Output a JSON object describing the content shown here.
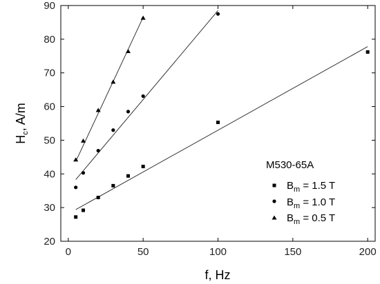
{
  "chart_data": {
    "type": "scatter",
    "xlabel": "f, Hz",
    "ylabel_main": "H",
    "ylabel_sub": "c",
    "ylabel_rest": ", A/m",
    "xlim": [
      -5,
      205
    ],
    "ylim": [
      20,
      90
    ],
    "xticks": [
      0,
      50,
      100,
      150,
      200
    ],
    "yticks": [
      20,
      30,
      40,
      50,
      60,
      70,
      80,
      90
    ],
    "grid": false,
    "legend_position": "right",
    "legend_title": "M530-65A",
    "series": [
      {
        "name": "B_m = 1.5 T",
        "label_main": "B",
        "label_sub": "m",
        "label_rest": " = 1.5 T",
        "marker": "square",
        "x": [
          5,
          10,
          20,
          30,
          40,
          50,
          100,
          200
        ],
        "y": [
          27.2,
          29.2,
          33.0,
          36.5,
          39.4,
          42.2,
          55.3,
          76.2
        ],
        "fit": [
          [
            5,
            29.4
          ],
          [
            200,
            77.8
          ]
        ]
      },
      {
        "name": "B_m = 1.0 T",
        "label_main": "B",
        "label_sub": "m",
        "label_rest": " = 1.0 T",
        "marker": "circle",
        "x": [
          5,
          10,
          20,
          30,
          40,
          50,
          100
        ],
        "y": [
          36.0,
          40.3,
          46.9,
          53.0,
          58.5,
          63.1,
          87.5
        ],
        "fit": [
          [
            5,
            38.3
          ],
          [
            100,
            88.5
          ]
        ]
      },
      {
        "name": "B_m = 0.5 T",
        "label_main": "B",
        "label_sub": "m",
        "label_rest": " = 0.5 T",
        "marker": "triangle",
        "x": [
          5,
          10,
          20,
          30,
          40,
          50
        ],
        "y": [
          44.2,
          49.8,
          58.9,
          67.3,
          76.4,
          86.3
        ],
        "fit": [
          [
            5,
            43.7
          ],
          [
            50,
            86.5
          ]
        ]
      }
    ]
  }
}
